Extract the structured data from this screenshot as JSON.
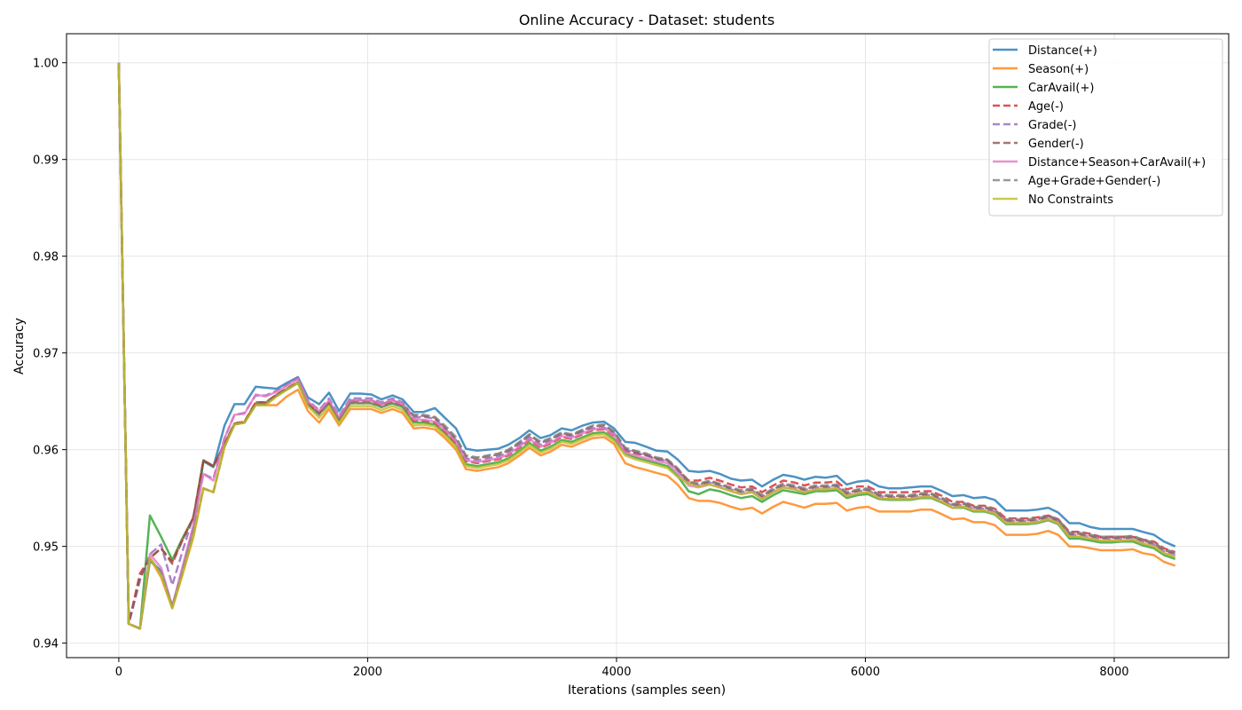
{
  "chart_data": {
    "type": "line",
    "title": "Online Accuracy - Dataset: students",
    "xlabel": "Iterations (samples seen)",
    "ylabel": "Accuracy",
    "xlim": [
      -420,
      8920
    ],
    "ylim": [
      0.9385,
      1.003
    ],
    "xticks": [
      0,
      2000,
      4000,
      6000,
      8000
    ],
    "xtick_labels": [
      "0",
      "2000",
      "4000",
      "6000",
      "8000"
    ],
    "yticks": [
      0.94,
      0.95,
      0.96,
      0.97,
      0.98,
      0.99,
      1.0
    ],
    "ytick_labels": [
      "0.94",
      "0.95",
      "0.96",
      "0.97",
      "0.98",
      "0.99",
      "1.00"
    ],
    "grid": true,
    "legend_position": "top-right",
    "x": [
      0,
      80,
      170,
      250,
      340,
      430,
      510,
      600,
      680,
      760,
      850,
      930,
      1010,
      1100,
      1180,
      1270,
      1350,
      1440,
      1520,
      1610,
      1690,
      1770,
      1860,
      1940,
      2030,
      2110,
      2200,
      2280,
      2370,
      2450,
      2540,
      2620,
      2710,
      2790,
      2880,
      2960,
      3050,
      3130,
      3220,
      3300,
      3390,
      3470,
      3560,
      3640,
      3730,
      3810,
      3900,
      3980,
      4070,
      4150,
      4240,
      4320,
      4410,
      4490,
      4580,
      4660,
      4750,
      4830,
      4920,
      5000,
      5090,
      5170,
      5260,
      5340,
      5430,
      5510,
      5600,
      5680,
      5770,
      5850,
      5940,
      6020,
      6110,
      6190,
      6280,
      6360,
      6450,
      6530,
      6620,
      6700,
      6790,
      6870,
      6960,
      7040,
      7130,
      7210,
      7300,
      7380,
      7470,
      7550,
      7640,
      7720,
      7810,
      7890,
      7980,
      8060,
      8150,
      8230,
      8320,
      8400,
      8490
    ],
    "series": [
      {
        "name": "Distance(+)",
        "color": "#1f77b4",
        "dash": "solid",
        "values": [
          1.0,
          0.942,
          0.9415,
          0.9485,
          0.9475,
          0.9438,
          0.9475,
          0.952,
          0.9588,
          0.9582,
          0.9625,
          0.9647,
          0.9647,
          0.9665,
          0.9664,
          0.9663,
          0.9669,
          0.9675,
          0.9654,
          0.9647,
          0.9659,
          0.964,
          0.9658,
          0.9658,
          0.9657,
          0.9652,
          0.9656,
          0.9652,
          0.9639,
          0.9639,
          0.9643,
          0.9633,
          0.9622,
          0.9601,
          0.9599,
          0.96,
          0.9601,
          0.9605,
          0.9612,
          0.962,
          0.9612,
          0.9615,
          0.9622,
          0.962,
          0.9625,
          0.9628,
          0.9629,
          0.9622,
          0.9608,
          0.9607,
          0.9603,
          0.9599,
          0.9598,
          0.959,
          0.9578,
          0.9577,
          0.9578,
          0.9575,
          0.957,
          0.9568,
          0.9569,
          0.9562,
          0.9569,
          0.9574,
          0.9572,
          0.9569,
          0.9572,
          0.9571,
          0.9573,
          0.9564,
          0.9567,
          0.9568,
          0.9562,
          0.956,
          0.956,
          0.9561,
          0.9562,
          0.9562,
          0.9557,
          0.9552,
          0.9553,
          0.955,
          0.9551,
          0.9548,
          0.9537,
          0.9537,
          0.9537,
          0.9538,
          0.954,
          0.9535,
          0.9524,
          0.9524,
          0.952,
          0.9518,
          0.9518,
          0.9518,
          0.9518,
          0.9515,
          0.9512,
          0.9505,
          0.95
        ]
      },
      {
        "name": "Season(+)",
        "color": "#ff7f0e",
        "dash": "solid",
        "values": [
          1.0,
          0.942,
          0.9415,
          0.9488,
          0.9468,
          0.9436,
          0.947,
          0.951,
          0.956,
          0.9556,
          0.9603,
          0.9626,
          0.9628,
          0.9646,
          0.9646,
          0.9646,
          0.9655,
          0.9662,
          0.964,
          0.9628,
          0.9642,
          0.9625,
          0.9642,
          0.9642,
          0.9642,
          0.9638,
          0.9642,
          0.9638,
          0.9622,
          0.9623,
          0.9621,
          0.9612,
          0.96,
          0.958,
          0.9578,
          0.958,
          0.9582,
          0.9586,
          0.9594,
          0.9602,
          0.9594,
          0.9598,
          0.9605,
          0.9603,
          0.9608,
          0.9612,
          0.9613,
          0.9606,
          0.9586,
          0.9582,
          0.9579,
          0.9576,
          0.9573,
          0.9564,
          0.955,
          0.9547,
          0.9547,
          0.9545,
          0.9541,
          0.9538,
          0.954,
          0.9534,
          0.9541,
          0.9546,
          0.9543,
          0.954,
          0.9544,
          0.9544,
          0.9545,
          0.9537,
          0.954,
          0.9541,
          0.9536,
          0.9536,
          0.9536,
          0.9536,
          0.9538,
          0.9538,
          0.9533,
          0.9528,
          0.9529,
          0.9525,
          0.9525,
          0.9522,
          0.9512,
          0.9512,
          0.9512,
          0.9513,
          0.9516,
          0.9512,
          0.95,
          0.95,
          0.9498,
          0.9496,
          0.9496,
          0.9496,
          0.9497,
          0.9493,
          0.9491,
          0.9484,
          0.948
        ]
      },
      {
        "name": "CarAvail(+)",
        "color": "#2ca02c",
        "dash": "solid",
        "values": [
          1.0,
          0.942,
          0.9415,
          0.9532,
          0.951,
          0.9486,
          0.9508,
          0.953,
          0.9589,
          0.9583,
          0.9605,
          0.9626,
          0.9628,
          0.9647,
          0.9647,
          0.9656,
          0.9662,
          0.9669,
          0.9646,
          0.9637,
          0.9648,
          0.963,
          0.9648,
          0.9648,
          0.9648,
          0.9644,
          0.9648,
          0.9644,
          0.9628,
          0.9628,
          0.9626,
          0.9617,
          0.9605,
          0.9585,
          0.9583,
          0.9585,
          0.9587,
          0.9591,
          0.9599,
          0.9607,
          0.9599,
          0.9603,
          0.961,
          0.9608,
          0.9613,
          0.9617,
          0.9618,
          0.9611,
          0.9596,
          0.9592,
          0.9589,
          0.9586,
          0.9583,
          0.9573,
          0.9557,
          0.9554,
          0.9559,
          0.9557,
          0.9553,
          0.955,
          0.9552,
          0.9546,
          0.9553,
          0.9558,
          0.9556,
          0.9554,
          0.9557,
          0.9557,
          0.9558,
          0.955,
          0.9553,
          0.9554,
          0.9549,
          0.9548,
          0.9548,
          0.9548,
          0.955,
          0.955,
          0.9545,
          0.954,
          0.954,
          0.9536,
          0.9536,
          0.9533,
          0.9523,
          0.9523,
          0.9523,
          0.9524,
          0.9527,
          0.9523,
          0.9508,
          0.9508,
          0.9506,
          0.9504,
          0.9504,
          0.9505,
          0.9505,
          0.9501,
          0.9498,
          0.9491,
          0.9487
        ]
      },
      {
        "name": "Age(-)",
        "color": "#d62728",
        "dash": "dashed",
        "values": [
          1.0,
          0.942,
          0.9472,
          0.9488,
          0.9498,
          0.9484,
          0.9506,
          0.953,
          0.9589,
          0.9583,
          0.9606,
          0.9627,
          0.9629,
          0.9649,
          0.9649,
          0.9657,
          0.9663,
          0.967,
          0.9648,
          0.9638,
          0.9649,
          0.9632,
          0.965,
          0.965,
          0.965,
          0.9646,
          0.965,
          0.9646,
          0.963,
          0.963,
          0.9628,
          0.9619,
          0.9607,
          0.9588,
          0.9586,
          0.9588,
          0.959,
          0.9594,
          0.9602,
          0.961,
          0.9602,
          0.9606,
          0.9613,
          0.9611,
          0.9616,
          0.962,
          0.9621,
          0.9614,
          0.9599,
          0.9596,
          0.9594,
          0.9591,
          0.9589,
          0.958,
          0.9568,
          0.9568,
          0.9571,
          0.9568,
          0.9564,
          0.9561,
          0.9562,
          0.9556,
          0.9563,
          0.9568,
          0.9566,
          0.9563,
          0.9566,
          0.9566,
          0.9567,
          0.9559,
          0.9562,
          0.9562,
          0.9556,
          0.9556,
          0.9556,
          0.9556,
          0.9557,
          0.9557,
          0.9552,
          0.9546,
          0.9546,
          0.9542,
          0.9542,
          0.9539,
          0.9529,
          0.9529,
          0.9529,
          0.953,
          0.9532,
          0.9528,
          0.9515,
          0.9515,
          0.9513,
          0.951,
          0.951,
          0.951,
          0.951,
          0.9507,
          0.9505,
          0.9498,
          0.9494
        ]
      },
      {
        "name": "Grade(-)",
        "color": "#9467bd",
        "dash": "dashed",
        "values": [
          1.0,
          0.942,
          0.9465,
          0.9492,
          0.9502,
          0.946,
          0.9494,
          0.9532,
          0.9575,
          0.957,
          0.9612,
          0.9636,
          0.9638,
          0.9656,
          0.9656,
          0.9661,
          0.9667,
          0.9674,
          0.9651,
          0.9641,
          0.9653,
          0.9635,
          0.9653,
          0.9653,
          0.9653,
          0.9649,
          0.9653,
          0.9649,
          0.9633,
          0.9634,
          0.9632,
          0.9622,
          0.961,
          0.9591,
          0.9589,
          0.9591,
          0.9593,
          0.9597,
          0.9605,
          0.9613,
          0.9605,
          0.9609,
          0.9616,
          0.9614,
          0.9619,
          0.9622,
          0.9623,
          0.9617,
          0.96,
          0.9597,
          0.9594,
          0.959,
          0.9588,
          0.9579,
          0.9565,
          0.9563,
          0.9566,
          0.9563,
          0.9559,
          0.9556,
          0.9558,
          0.9551,
          0.9558,
          0.9563,
          0.9561,
          0.9558,
          0.9561,
          0.9561,
          0.9562,
          0.9554,
          0.9557,
          0.9558,
          0.9552,
          0.9551,
          0.9551,
          0.9551,
          0.9553,
          0.9553,
          0.9548,
          0.9542,
          0.9543,
          0.9539,
          0.9539,
          0.9536,
          0.9526,
          0.9526,
          0.9526,
          0.9527,
          0.953,
          0.9526,
          0.9512,
          0.9512,
          0.951,
          0.9508,
          0.9508,
          0.9508,
          0.9509,
          0.9505,
          0.9502,
          0.9495,
          0.9492
        ]
      },
      {
        "name": "Gender(-)",
        "color": "#8c564b",
        "dash": "dashed",
        "values": [
          1.0,
          0.942,
          0.9468,
          0.9488,
          0.9498,
          0.9482,
          0.9506,
          0.953,
          0.9589,
          0.9583,
          0.9606,
          0.9627,
          0.9629,
          0.9649,
          0.9649,
          0.9657,
          0.9663,
          0.967,
          0.9648,
          0.9638,
          0.9649,
          0.9632,
          0.9651,
          0.9651,
          0.9651,
          0.9647,
          0.9651,
          0.9647,
          0.9635,
          0.9635,
          0.9633,
          0.9623,
          0.9611,
          0.9593,
          0.9591,
          0.9593,
          0.9595,
          0.9599,
          0.9607,
          0.9615,
          0.9607,
          0.9611,
          0.9617,
          0.9615,
          0.962,
          0.9624,
          0.9625,
          0.9618,
          0.9601,
          0.9598,
          0.9595,
          0.9591,
          0.9589,
          0.958,
          0.9566,
          0.9564,
          0.9567,
          0.9564,
          0.956,
          0.9557,
          0.9559,
          0.9552,
          0.9559,
          0.9564,
          0.9562,
          0.9559,
          0.9562,
          0.9562,
          0.9563,
          0.9555,
          0.9558,
          0.9559,
          0.9553,
          0.9552,
          0.9552,
          0.9552,
          0.9554,
          0.9554,
          0.9549,
          0.9543,
          0.9544,
          0.954,
          0.954,
          0.9537,
          0.9527,
          0.9527,
          0.9527,
          0.9528,
          0.9531,
          0.9527,
          0.9513,
          0.9513,
          0.9511,
          0.9509,
          0.9509,
          0.9509,
          0.951,
          0.9506,
          0.9503,
          0.9496,
          0.9493
        ]
      },
      {
        "name": "Distance+Season+CarAvail(+)",
        "color": "#e377c2",
        "dash": "solid",
        "values": [
          1.0,
          0.942,
          0.9415,
          0.9492,
          0.9478,
          0.9438,
          0.9478,
          0.9522,
          0.9575,
          0.9568,
          0.9612,
          0.9636,
          0.9637,
          0.9657,
          0.9655,
          0.966,
          0.9666,
          0.9673,
          0.965,
          0.964,
          0.9651,
          0.9633,
          0.9651,
          0.9651,
          0.9651,
          0.9647,
          0.9651,
          0.9647,
          0.9631,
          0.9631,
          0.9629,
          0.962,
          0.9608,
          0.9589,
          0.9587,
          0.9589,
          0.9591,
          0.9595,
          0.9603,
          0.9611,
          0.9603,
          0.9607,
          0.9614,
          0.9612,
          0.9617,
          0.9621,
          0.9622,
          0.9615,
          0.9597,
          0.9594,
          0.9591,
          0.9588,
          0.9586,
          0.9576,
          0.9563,
          0.9561,
          0.9564,
          0.9561,
          0.9557,
          0.9554,
          0.9556,
          0.9549,
          0.9556,
          0.9561,
          0.9559,
          0.9556,
          0.9559,
          0.9559,
          0.956,
          0.9552,
          0.9555,
          0.9556,
          0.955,
          0.9549,
          0.9549,
          0.9549,
          0.9551,
          0.9551,
          0.9546,
          0.954,
          0.9541,
          0.9537,
          0.9537,
          0.9534,
          0.9524,
          0.9524,
          0.9524,
          0.9525,
          0.9528,
          0.9524,
          0.951,
          0.951,
          0.9508,
          0.9506,
          0.9506,
          0.9506,
          0.9507,
          0.9503,
          0.95,
          0.9493,
          0.949
        ]
      },
      {
        "name": "Age+Grade+Gender(-)",
        "color": "#7f7f7f",
        "dash": "dashed",
        "values": [
          1.0,
          0.942,
          0.9415,
          0.9488,
          0.9472,
          0.9438,
          0.9472,
          0.9515,
          0.956,
          0.9556,
          0.9603,
          0.9626,
          0.9628,
          0.9647,
          0.9648,
          0.9656,
          0.9662,
          0.9669,
          0.9646,
          0.9636,
          0.9648,
          0.963,
          0.9648,
          0.9648,
          0.9648,
          0.9644,
          0.9648,
          0.9644,
          0.9636,
          0.9636,
          0.9634,
          0.9625,
          0.9613,
          0.9594,
          0.9592,
          0.9594,
          0.9596,
          0.96,
          0.9608,
          0.9616,
          0.9608,
          0.9612,
          0.9618,
          0.9616,
          0.9621,
          0.9625,
          0.9626,
          0.9619,
          0.9602,
          0.9599,
          0.9596,
          0.9592,
          0.959,
          0.9581,
          0.9567,
          0.9565,
          0.9568,
          0.9565,
          0.9561,
          0.9558,
          0.956,
          0.9553,
          0.956,
          0.9565,
          0.9563,
          0.956,
          0.9563,
          0.9563,
          0.9564,
          0.9556,
          0.9559,
          0.956,
          0.9554,
          0.9553,
          0.9553,
          0.9553,
          0.9555,
          0.9555,
          0.955,
          0.9544,
          0.9545,
          0.9541,
          0.9541,
          0.9538,
          0.9528,
          0.9528,
          0.9528,
          0.9529,
          0.9532,
          0.9528,
          0.9514,
          0.9514,
          0.9512,
          0.951,
          0.951,
          0.951,
          0.9511,
          0.9507,
          0.9504,
          0.9497,
          0.9494
        ]
      },
      {
        "name": "No Constraints",
        "color": "#bcbd22",
        "dash": "solid",
        "values": [
          1.0,
          0.942,
          0.9415,
          0.9488,
          0.947,
          0.9436,
          0.947,
          0.9512,
          0.956,
          0.9556,
          0.9603,
          0.9626,
          0.9628,
          0.9646,
          0.9646,
          0.9655,
          0.9662,
          0.9669,
          0.9645,
          0.9633,
          0.9645,
          0.9627,
          0.9645,
          0.9645,
          0.9645,
          0.9641,
          0.9645,
          0.9641,
          0.9625,
          0.9626,
          0.9624,
          0.9615,
          0.9603,
          0.9583,
          0.9581,
          0.9583,
          0.9585,
          0.9589,
          0.9597,
          0.9605,
          0.9597,
          0.9601,
          0.9608,
          0.9606,
          0.9611,
          0.9615,
          0.9616,
          0.9609,
          0.9594,
          0.959,
          0.9587,
          0.9584,
          0.9581,
          0.9572,
          0.9565,
          0.9562,
          0.9564,
          0.9561,
          0.9557,
          0.9554,
          0.9556,
          0.9549,
          0.9556,
          0.9561,
          0.9559,
          0.9556,
          0.9559,
          0.9559,
          0.956,
          0.9552,
          0.9555,
          0.9556,
          0.955,
          0.9549,
          0.9549,
          0.9549,
          0.9551,
          0.9551,
          0.9546,
          0.954,
          0.9541,
          0.9537,
          0.9537,
          0.9534,
          0.9524,
          0.9524,
          0.9524,
          0.9525,
          0.9528,
          0.9524,
          0.951,
          0.951,
          0.9508,
          0.9506,
          0.9506,
          0.9506,
          0.9507,
          0.9503,
          0.95,
          0.9493,
          0.9489
        ]
      }
    ]
  }
}
